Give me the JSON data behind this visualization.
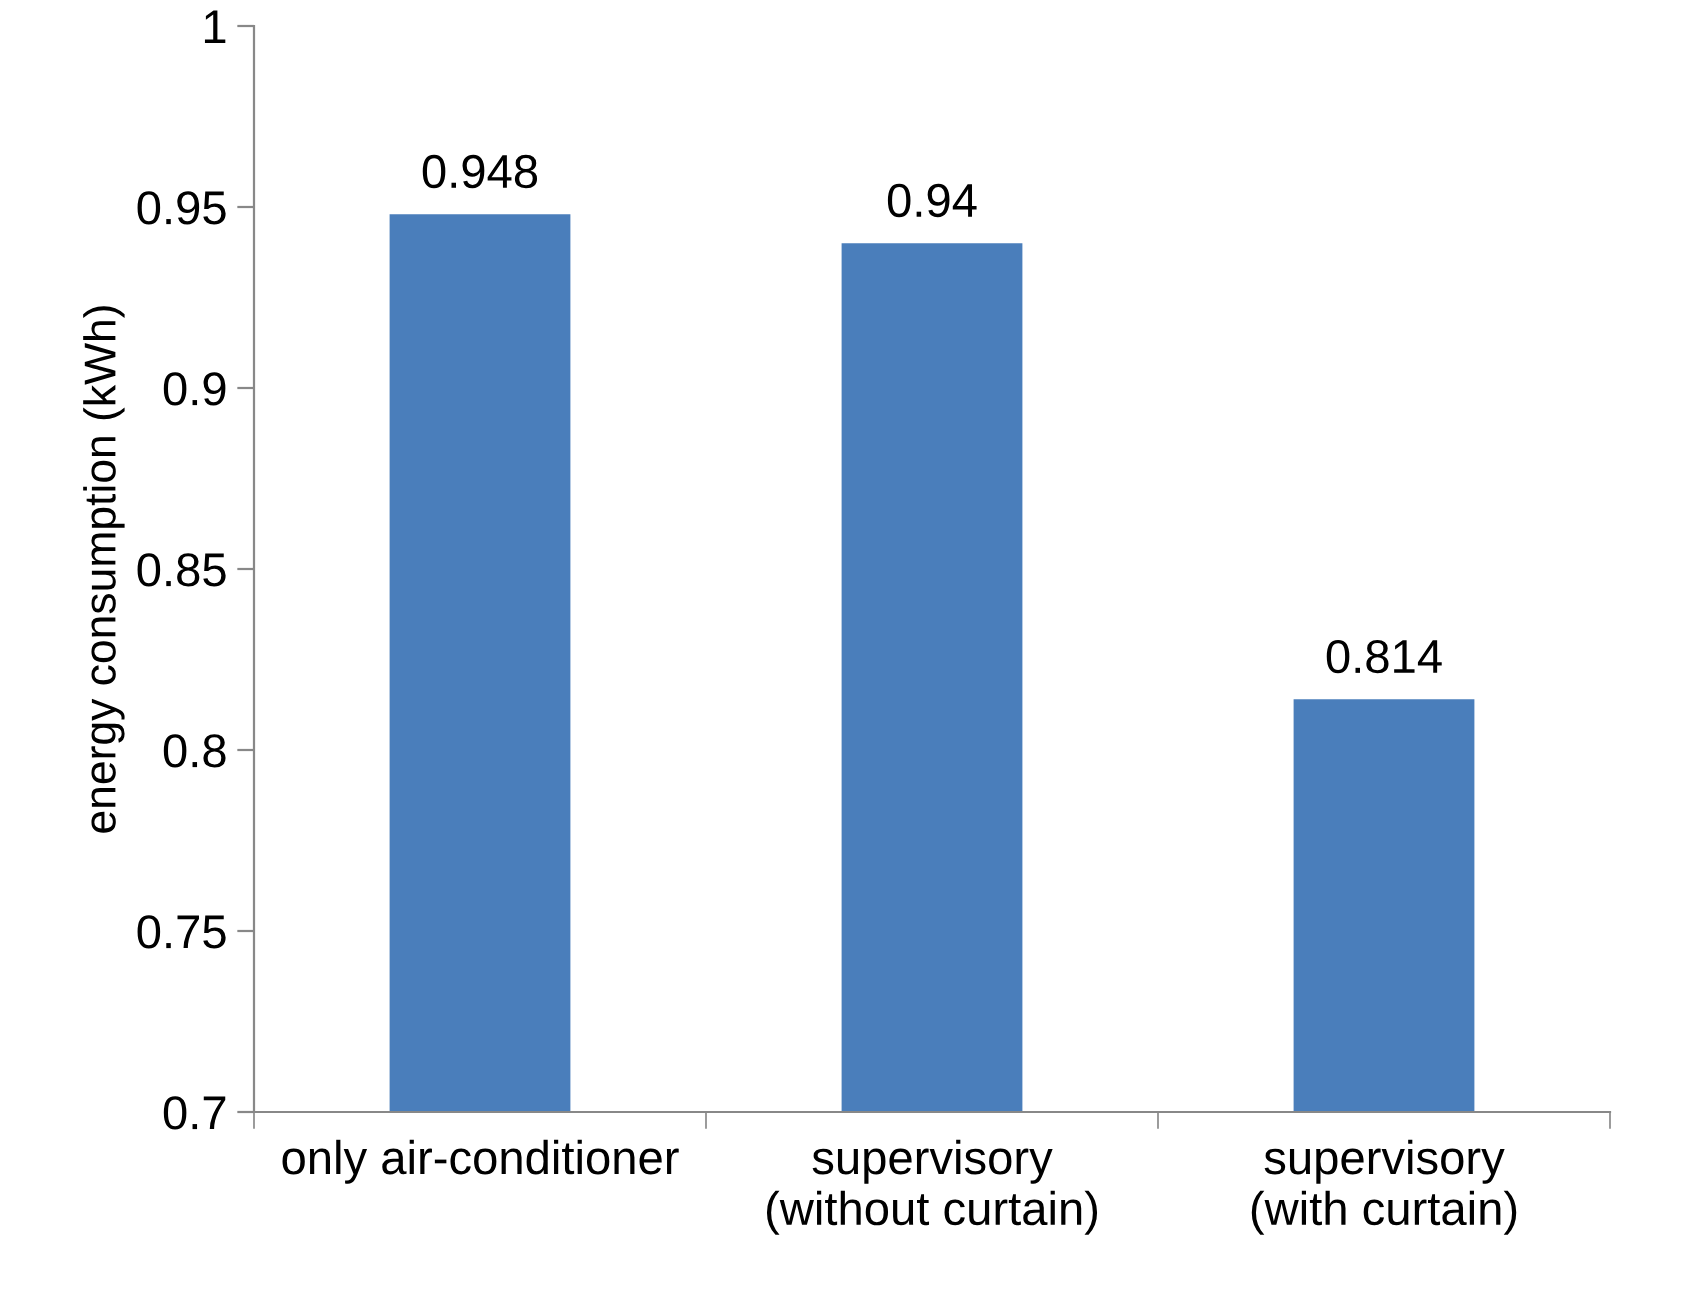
{
  "chart_data": {
    "type": "bar",
    "ylabel": "energy consumption (kWh)",
    "categories": [
      "only air-conditioner",
      "supervisory\n(without curtain)",
      "supervisory\n(with curtain)"
    ],
    "values": [
      0.948,
      0.94,
      0.814
    ],
    "color": "#4a7ebb",
    "data_labels": true,
    "ylim": [
      0.7,
      1
    ],
    "yticks": [
      0.7,
      0.75,
      0.8,
      0.85,
      0.9,
      0.95,
      1
    ],
    "grid": false,
    "legend": false
  }
}
